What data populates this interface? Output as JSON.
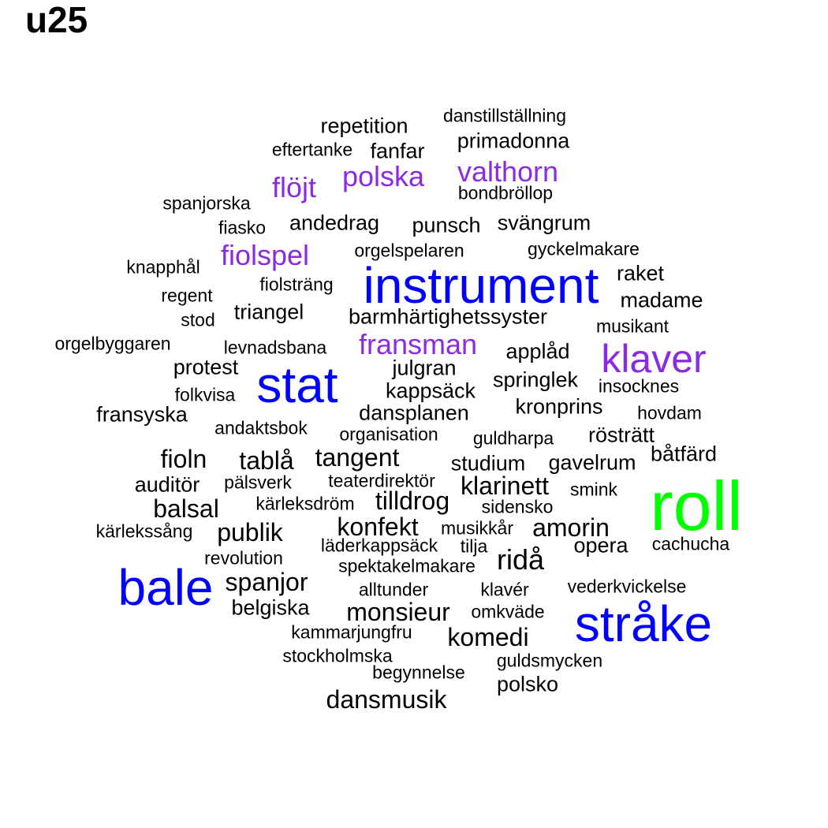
{
  "title": "u25",
  "colors": {
    "tier1": "#00ff00",
    "tier2": "#0000ff",
    "tier3": "#8a2be2",
    "tier4": "#000000"
  },
  "words": [
    {
      "text": "roll",
      "weight": 1
    },
    {
      "text": "stråke",
      "weight": 2
    },
    {
      "text": "bale",
      "weight": 2
    },
    {
      "text": "stat",
      "weight": 2
    },
    {
      "text": "instrument",
      "weight": 2
    },
    {
      "text": "klaver",
      "weight": 3
    },
    {
      "text": "fransman",
      "weight": 3
    },
    {
      "text": "fiolspel",
      "weight": 3
    },
    {
      "text": "flöjt",
      "weight": 3
    },
    {
      "text": "polska",
      "weight": 3
    },
    {
      "text": "valthorn",
      "weight": 3
    },
    {
      "text": "repetition",
      "weight": 4
    },
    {
      "text": "danstillställning",
      "weight": 4
    },
    {
      "text": "primadonna",
      "weight": 4
    },
    {
      "text": "eftertanke",
      "weight": 4
    },
    {
      "text": "fanfar",
      "weight": 4
    },
    {
      "text": "bondbröllop",
      "weight": 4
    },
    {
      "text": "spanjorska",
      "weight": 4
    },
    {
      "text": "andedrag",
      "weight": 4
    },
    {
      "text": "punsch",
      "weight": 4
    },
    {
      "text": "svängrum",
      "weight": 4
    },
    {
      "text": "fiasko",
      "weight": 4
    },
    {
      "text": "gyckelmakare",
      "weight": 4
    },
    {
      "text": "orgelspelaren",
      "weight": 4
    },
    {
      "text": "knapphål",
      "weight": 4
    },
    {
      "text": "raket",
      "weight": 4
    },
    {
      "text": "fiolsträng",
      "weight": 4
    },
    {
      "text": "regent",
      "weight": 4
    },
    {
      "text": "madame",
      "weight": 4
    },
    {
      "text": "triangel",
      "weight": 4
    },
    {
      "text": "barmhärtighetssyster",
      "weight": 4
    },
    {
      "text": "stod",
      "weight": 4
    },
    {
      "text": "musikant",
      "weight": 4
    },
    {
      "text": "orgelbyggaren",
      "weight": 4
    },
    {
      "text": "levnadsbana",
      "weight": 4
    },
    {
      "text": "applåd",
      "weight": 4
    },
    {
      "text": "protest",
      "weight": 4
    },
    {
      "text": "julgran",
      "weight": 4
    },
    {
      "text": "springlek",
      "weight": 4
    },
    {
      "text": "insocknes",
      "weight": 4
    },
    {
      "text": "folkvisa",
      "weight": 4
    },
    {
      "text": "kappsäck",
      "weight": 4
    },
    {
      "text": "fransyska",
      "weight": 4
    },
    {
      "text": "dansplanen",
      "weight": 4
    },
    {
      "text": "kronprins",
      "weight": 4
    },
    {
      "text": "hovdam",
      "weight": 4
    },
    {
      "text": "andaktsbok",
      "weight": 4
    },
    {
      "text": "organisation",
      "weight": 4
    },
    {
      "text": "guldharpa",
      "weight": 4
    },
    {
      "text": "rösträtt",
      "weight": 4
    },
    {
      "text": "fioln",
      "weight": 4
    },
    {
      "text": "tablå",
      "weight": 4
    },
    {
      "text": "tangent",
      "weight": 4
    },
    {
      "text": "båtfärd",
      "weight": 4
    },
    {
      "text": "studium",
      "weight": 4
    },
    {
      "text": "gavelrum",
      "weight": 4
    },
    {
      "text": "auditör",
      "weight": 4
    },
    {
      "text": "pälsverk",
      "weight": 4
    },
    {
      "text": "teaterdirektör",
      "weight": 4
    },
    {
      "text": "klarinett",
      "weight": 4
    },
    {
      "text": "smink",
      "weight": 4
    },
    {
      "text": "balsal",
      "weight": 4
    },
    {
      "text": "kärleksdröm",
      "weight": 4
    },
    {
      "text": "tilldrog",
      "weight": 4
    },
    {
      "text": "sidensko",
      "weight": 4
    },
    {
      "text": "kärlekssång",
      "weight": 4
    },
    {
      "text": "publik",
      "weight": 4
    },
    {
      "text": "konfekt",
      "weight": 4
    },
    {
      "text": "musikkår",
      "weight": 4
    },
    {
      "text": "amorin",
      "weight": 4
    },
    {
      "text": "läderkappsäck",
      "weight": 4
    },
    {
      "text": "tilja",
      "weight": 4
    },
    {
      "text": "opera",
      "weight": 4
    },
    {
      "text": "cachucha",
      "weight": 4
    },
    {
      "text": "revolution",
      "weight": 4
    },
    {
      "text": "spektakelmakare",
      "weight": 4
    },
    {
      "text": "ridå",
      "weight": 4
    },
    {
      "text": "spanjor",
      "weight": 4
    },
    {
      "text": "alltunder",
      "weight": 4
    },
    {
      "text": "klavér",
      "weight": 4
    },
    {
      "text": "vederkvickelse",
      "weight": 4
    },
    {
      "text": "belgiska",
      "weight": 4
    },
    {
      "text": "monsieur",
      "weight": 4
    },
    {
      "text": "omkväde",
      "weight": 4
    },
    {
      "text": "kammarjungfru",
      "weight": 4
    },
    {
      "text": "komedi",
      "weight": 4
    },
    {
      "text": "stockholmska",
      "weight": 4
    },
    {
      "text": "guldsmycken",
      "weight": 4
    },
    {
      "text": "begynnelse",
      "weight": 4
    },
    {
      "text": "polsko",
      "weight": 4
    },
    {
      "text": "dansmusik",
      "weight": 4
    }
  ]
}
